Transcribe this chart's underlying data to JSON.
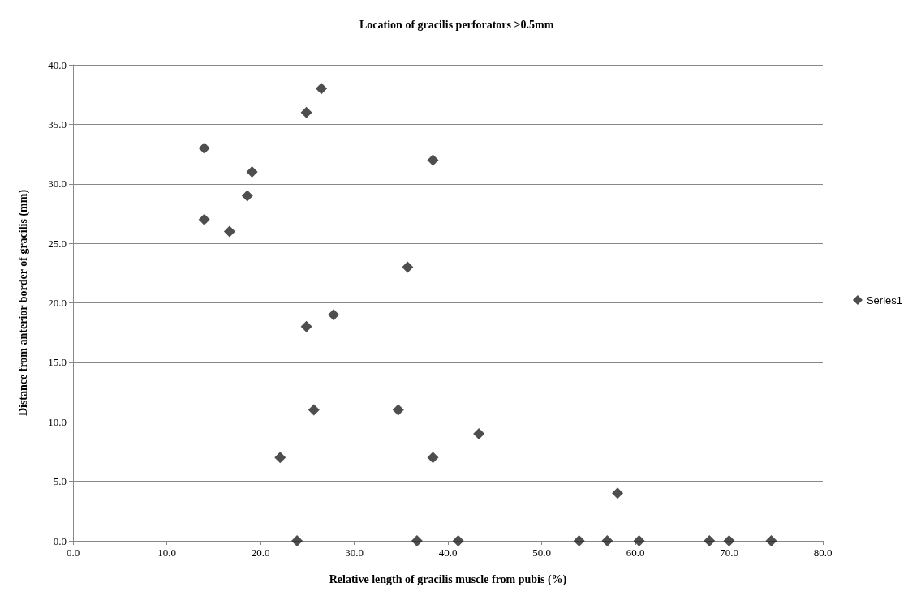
{
  "chart_data": {
    "type": "scatter",
    "title": "Location of gracilis perforators >0.5mm",
    "xlabel": "Relative length of gracilis muscle from pubis (%)",
    "ylabel": "Distance from anterior border of gracilis (mm)",
    "series": [
      {
        "name": "Series1",
        "color": "#222222",
        "x": [
          14.0,
          14.0,
          16.7,
          18.6,
          19.1,
          24.9,
          26.5,
          24.9,
          27.8,
          25.7,
          22.1,
          23.9,
          35.7,
          34.7,
          38.4,
          38.4,
          36.7,
          41.1,
          43.3,
          54.0,
          57.0,
          58.1,
          60.4,
          67.9,
          70.0,
          74.5
        ],
        "values": [
          27,
          33,
          26,
          29,
          31,
          36,
          38,
          18,
          19,
          11,
          7,
          0,
          23,
          11,
          32,
          7,
          0,
          0,
          9,
          0,
          0,
          4,
          0,
          0,
          0,
          0
        ]
      }
    ],
    "xlim": [
      0,
      80
    ],
    "xticks": [
      {
        "value": 0,
        "label": "0.0"
      },
      {
        "value": 10,
        "label": "10.0"
      },
      {
        "value": 20,
        "label": "20.0"
      },
      {
        "value": 30,
        "label": "30.0"
      },
      {
        "value": 40,
        "label": "40.0"
      },
      {
        "value": 50,
        "label": "50.0"
      },
      {
        "value": 60,
        "label": "60.0"
      },
      {
        "value": 70,
        "label": "70.0"
      },
      {
        "value": 80,
        "label": "80.0"
      }
    ],
    "ylim": [
      0,
      40
    ],
    "yticks": [
      {
        "value": 0,
        "label": "0.0"
      },
      {
        "value": 5,
        "label": "5.0"
      },
      {
        "value": 10,
        "label": "10.0"
      },
      {
        "value": 15,
        "label": "15.0"
      },
      {
        "value": 20,
        "label": "20.0"
      },
      {
        "value": 25,
        "label": "25.0"
      },
      {
        "value": 30,
        "label": "30.0"
      },
      {
        "value": 35,
        "label": "35.0"
      },
      {
        "value": 40,
        "label": "40.0"
      }
    ],
    "grid": "y",
    "legend": "right",
    "marker": "diamond"
  }
}
